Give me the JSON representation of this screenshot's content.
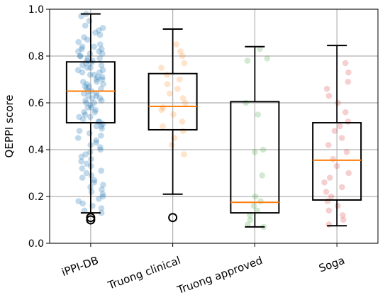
{
  "chart_data": {
    "type": "box",
    "title": "",
    "xlabel": "",
    "ylabel": "QEPPI score",
    "ylim": [
      0.0,
      1.0
    ],
    "yticks": [
      "0.0",
      "0.2",
      "0.4",
      "0.6",
      "0.8",
      "1.0"
    ],
    "grid": true,
    "categories": [
      "iPPI-DB",
      "Truong clinical",
      "Truong approved",
      "Soga"
    ],
    "box_color": "#000000",
    "median_color": "#ff7f0e",
    "series": [
      {
        "category": "iPPI-DB",
        "color": "#1f77b4",
        "whisker_low": 0.13,
        "q1": 0.515,
        "median": 0.65,
        "q3": 0.775,
        "whisker_high": 0.98,
        "outliers": [
          0.11,
          0.1
        ],
        "points": [
          0.13,
          0.14,
          0.15,
          0.16,
          0.17,
          0.18,
          0.19,
          0.2,
          0.21,
          0.22,
          0.23,
          0.24,
          0.25,
          0.26,
          0.27,
          0.28,
          0.29,
          0.3,
          0.31,
          0.32,
          0.33,
          0.34,
          0.35,
          0.36,
          0.37,
          0.38,
          0.39,
          0.4,
          0.41,
          0.42,
          0.43,
          0.44,
          0.45,
          0.46,
          0.47,
          0.48,
          0.49,
          0.5,
          0.5,
          0.51,
          0.52,
          0.52,
          0.53,
          0.54,
          0.54,
          0.55,
          0.56,
          0.56,
          0.57,
          0.58,
          0.58,
          0.59,
          0.6,
          0.6,
          0.61,
          0.61,
          0.62,
          0.62,
          0.63,
          0.63,
          0.64,
          0.64,
          0.65,
          0.65,
          0.66,
          0.66,
          0.67,
          0.67,
          0.68,
          0.68,
          0.69,
          0.69,
          0.7,
          0.7,
          0.71,
          0.71,
          0.72,
          0.72,
          0.73,
          0.73,
          0.74,
          0.74,
          0.75,
          0.75,
          0.76,
          0.76,
          0.77,
          0.77,
          0.78,
          0.78,
          0.79,
          0.79,
          0.8,
          0.8,
          0.81,
          0.81,
          0.82,
          0.82,
          0.83,
          0.83,
          0.84,
          0.84,
          0.85,
          0.86,
          0.87,
          0.88,
          0.89,
          0.9,
          0.91,
          0.92,
          0.93,
          0.95,
          0.97,
          0.98
        ]
      },
      {
        "category": "Truong clinical",
        "color": "#ff7f0e",
        "whisker_low": 0.21,
        "q1": 0.485,
        "median": 0.585,
        "q3": 0.725,
        "whisker_high": 0.915,
        "outliers": [
          0.11
        ],
        "points": [
          0.38,
          0.42,
          0.45,
          0.48,
          0.5,
          0.52,
          0.55,
          0.57,
          0.58,
          0.6,
          0.62,
          0.64,
          0.66,
          0.68,
          0.7,
          0.72,
          0.75,
          0.77,
          0.8,
          0.82,
          0.85
        ]
      },
      {
        "category": "Truong approved",
        "color": "#2ca02c",
        "whisker_low": 0.07,
        "q1": 0.13,
        "median": 0.175,
        "q3": 0.605,
        "whisker_high": 0.84,
        "outliers": [],
        "points": [
          0.07,
          0.08,
          0.1,
          0.12,
          0.14,
          0.16,
          0.18,
          0.2,
          0.29,
          0.39,
          0.4,
          0.55,
          0.6,
          0.78,
          0.79,
          0.83
        ]
      },
      {
        "category": "Soga",
        "color": "#d62728",
        "whisker_low": 0.075,
        "q1": 0.185,
        "median": 0.355,
        "q3": 0.515,
        "whisker_high": 0.845,
        "outliers": [],
        "points": [
          0.08,
          0.1,
          0.12,
          0.14,
          0.16,
          0.18,
          0.2,
          0.22,
          0.24,
          0.26,
          0.28,
          0.3,
          0.33,
          0.36,
          0.39,
          0.42,
          0.45,
          0.48,
          0.5,
          0.52,
          0.56,
          0.6,
          0.63,
          0.66,
          0.69,
          0.73,
          0.77
        ]
      }
    ]
  }
}
